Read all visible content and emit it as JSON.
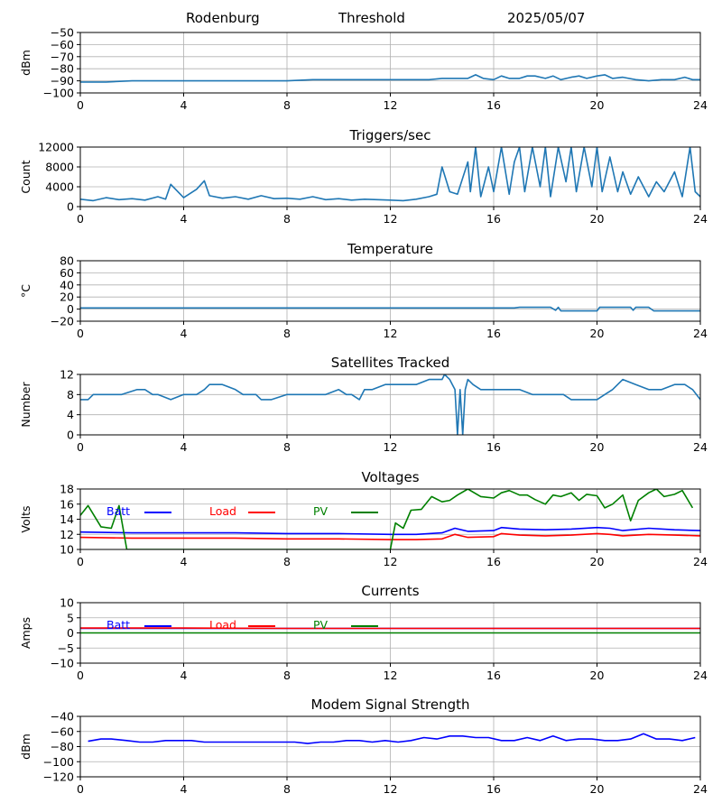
{
  "header": {
    "station": "Rodenburg",
    "mode": "Threshold",
    "date": "2025/05/07"
  },
  "chart_data": [
    {
      "type": "line",
      "title": "",
      "ylabel": "dBm",
      "xlim": [
        0,
        24
      ],
      "ylim": [
        -100,
        -50
      ],
      "xticks": [
        0,
        4,
        8,
        12,
        16,
        20,
        24
      ],
      "yticks": [
        -100,
        -90,
        -80,
        -70,
        -60,
        -50
      ],
      "grid": true,
      "series": [
        {
          "color": "#1f77b4",
          "x": [
            0,
            1,
            2,
            3,
            4,
            5,
            6,
            7,
            8,
            9,
            10,
            11,
            12,
            13,
            13.5,
            14,
            14.5,
            15,
            15.3,
            15.6,
            16,
            16.3,
            16.6,
            17,
            17.3,
            17.6,
            18,
            18.3,
            18.6,
            19,
            19.3,
            19.6,
            20,
            20.3,
            20.6,
            21,
            21.5,
            22,
            22.5,
            23,
            23.4,
            23.7,
            24
          ],
          "values": [
            -91,
            -91,
            -90,
            -90,
            -90,
            -90,
            -90,
            -90,
            -90,
            -89,
            -89,
            -89,
            -89,
            -89,
            -89,
            -88,
            -88,
            -88,
            -85,
            -88,
            -89,
            -86,
            -88,
            -88,
            -86,
            -86,
            -88,
            -86,
            -89,
            -87,
            -86,
            -88,
            -86,
            -85,
            -88,
            -87,
            -89,
            -90,
            -89,
            -89,
            -87,
            -89,
            -89
          ]
        }
      ]
    },
    {
      "type": "line",
      "title": "Triggers/sec",
      "ylabel": "Count",
      "xlim": [
        0,
        24
      ],
      "ylim": [
        0,
        12000
      ],
      "xticks": [
        0,
        4,
        8,
        12,
        16,
        20,
        24
      ],
      "yticks": [
        0,
        4000,
        8000,
        12000
      ],
      "grid": true,
      "series": [
        {
          "color": "#1f77b4",
          "x": [
            0,
            0.5,
            1,
            1.5,
            2,
            2.5,
            3,
            3.3,
            3.5,
            4,
            4.5,
            4.8,
            5,
            5.5,
            6,
            6.5,
            7,
            7.5,
            8,
            8.5,
            9,
            9.5,
            10,
            10.5,
            11,
            11.5,
            12,
            12.5,
            13,
            13.5,
            13.8,
            14,
            14.3,
            14.6,
            15,
            15.1,
            15.3,
            15.5,
            15.8,
            16,
            16.3,
            16.6,
            16.8,
            17,
            17.2,
            17.5,
            17.8,
            18,
            18.2,
            18.5,
            18.8,
            19,
            19.2,
            19.5,
            19.8,
            20,
            20.2,
            20.5,
            20.8,
            21,
            21.3,
            21.6,
            22,
            22.3,
            22.6,
            23,
            23.3,
            23.6,
            23.8,
            24
          ],
          "values": [
            1500,
            1200,
            1800,
            1400,
            1600,
            1300,
            2000,
            1500,
            4500,
            1800,
            3500,
            5200,
            2200,
            1700,
            2000,
            1500,
            2200,
            1600,
            1700,
            1500,
            2000,
            1400,
            1600,
            1300,
            1500,
            1400,
            1300,
            1200,
            1500,
            2000,
            2500,
            8000,
            3000,
            2500,
            9000,
            3000,
            12000,
            2000,
            8000,
            3000,
            12000,
            2500,
            9000,
            12000,
            3000,
            12000,
            4000,
            12000,
            2000,
            12000,
            5000,
            12000,
            3000,
            12000,
            4000,
            12000,
            3000,
            10000,
            3000,
            7000,
            2500,
            6000,
            2000,
            5000,
            3000,
            7000,
            2000,
            12000,
            3000,
            2000
          ]
        }
      ]
    },
    {
      "type": "line",
      "title": "Temperature",
      "ylabel": "°C",
      "xlim": [
        0,
        24
      ],
      "ylim": [
        -20,
        80
      ],
      "xticks": [
        0,
        4,
        8,
        12,
        16,
        20,
        24
      ],
      "yticks": [
        -20,
        0,
        20,
        40,
        60,
        80
      ],
      "grid": true,
      "series": [
        {
          "color": "#1f77b4",
          "x": [
            0,
            4,
            8,
            12,
            16,
            16.8,
            17,
            18.2,
            18.4,
            18.5,
            18.6,
            18.8,
            19,
            19.3,
            19.6,
            20,
            20.1,
            20.5,
            21,
            21.3,
            21.4,
            21.5,
            22,
            22.2,
            22.5,
            22.8,
            23,
            23.3,
            23.6,
            24
          ],
          "values": [
            2,
            2,
            2,
            2,
            2,
            2,
            3,
            3,
            -2,
            3,
            -3,
            -3,
            -3,
            -3,
            -3,
            -3,
            3,
            3,
            3,
            3,
            -2,
            3,
            3,
            -3,
            -3,
            -3,
            -3,
            -3,
            -3,
            -3
          ]
        }
      ]
    },
    {
      "type": "line",
      "title": "Satellites Tracked",
      "ylabel": "Number",
      "xlim": [
        0,
        24
      ],
      "ylim": [
        0,
        12
      ],
      "xticks": [
        0,
        4,
        8,
        12,
        16,
        20,
        24
      ],
      "yticks": [
        0,
        4,
        8,
        12
      ],
      "grid": true,
      "series": [
        {
          "color": "#1f77b4",
          "x": [
            0,
            0.3,
            0.5,
            1,
            1.6,
            2.2,
            2.5,
            2.8,
            3,
            3.5,
            4,
            4.5,
            4.8,
            5,
            5.5,
            6,
            6.3,
            6.8,
            7,
            7.2,
            7.4,
            8,
            8.5,
            9,
            9.5,
            10,
            10.3,
            10.5,
            10.8,
            11,
            11.3,
            11.8,
            12,
            12.5,
            13,
            13.5,
            14,
            14.1,
            14.3,
            14.4,
            14.5,
            14.6,
            14.7,
            14.8,
            14.9,
            15,
            15.2,
            15.5,
            16,
            16.5,
            17,
            17.5,
            18,
            18.3,
            18.7,
            19,
            19.5,
            20,
            20.3,
            20.6,
            21,
            21.5,
            22,
            22.5,
            23,
            23.4,
            23.7,
            24
          ],
          "values": [
            7,
            7,
            8,
            8,
            8,
            9,
            9,
            8,
            8,
            7,
            8,
            8,
            9,
            10,
            10,
            9,
            8,
            8,
            7,
            7,
            7,
            8,
            8,
            8,
            8,
            9,
            8,
            8,
            7,
            9,
            9,
            10,
            10,
            10,
            10,
            11,
            11,
            12,
            11,
            10,
            9,
            0,
            9,
            0,
            9,
            11,
            10,
            9,
            9,
            9,
            9,
            8,
            8,
            8,
            8,
            7,
            7,
            7,
            8,
            9,
            11,
            10,
            9,
            9,
            10,
            10,
            9,
            7
          ]
        }
      ]
    },
    {
      "type": "line",
      "title": "Voltages",
      "ylabel": "Volts",
      "xlim": [
        0,
        24
      ],
      "ylim": [
        10,
        18
      ],
      "xticks": [
        0,
        4,
        8,
        12,
        16,
        20,
        24
      ],
      "yticks": [
        10,
        12,
        14,
        16,
        18
      ],
      "grid": true,
      "legend_position": "top",
      "series": [
        {
          "name": "Batt",
          "color": "#0000ff",
          "x": [
            0,
            2,
            4,
            6,
            8,
            10,
            12,
            13,
            14,
            14.5,
            15,
            16,
            16.3,
            17,
            18,
            19,
            20,
            20.5,
            21,
            22,
            23,
            24
          ],
          "values": [
            12.3,
            12.2,
            12.2,
            12.2,
            12.1,
            12.1,
            12.0,
            12.0,
            12.2,
            12.8,
            12.4,
            12.5,
            12.9,
            12.7,
            12.6,
            12.7,
            12.9,
            12.8,
            12.5,
            12.8,
            12.6,
            12.5
          ]
        },
        {
          "name": "Load",
          "color": "#ff0000",
          "x": [
            0,
            2,
            4,
            6,
            8,
            10,
            12,
            13,
            14,
            14.5,
            15,
            16,
            16.3,
            17,
            18,
            19,
            20,
            20.5,
            21,
            22,
            23,
            24
          ],
          "values": [
            11.6,
            11.5,
            11.5,
            11.5,
            11.4,
            11.4,
            11.3,
            11.3,
            11.4,
            12.0,
            11.6,
            11.7,
            12.1,
            11.9,
            11.8,
            11.9,
            12.1,
            12.0,
            11.8,
            12.0,
            11.9,
            11.8
          ]
        },
        {
          "name": "PV",
          "color": "#008000",
          "x": [
            0,
            0.3,
            0.8,
            1.2,
            1.5,
            1.8,
            12,
            12.2,
            12.5,
            12.8,
            13.2,
            13.6,
            14,
            14.3,
            14.6,
            15,
            15.5,
            16,
            16.3,
            16.6,
            17,
            17.3,
            17.6,
            18,
            18.3,
            18.6,
            19,
            19.3,
            19.6,
            20,
            20.3,
            20.6,
            21,
            21.3,
            21.6,
            22,
            22.3,
            22.6,
            23,
            23.3,
            23.7
          ],
          "values": [
            14.5,
            15.8,
            13.0,
            12.8,
            15.8,
            10.0,
            10.0,
            13.5,
            12.8,
            15.2,
            15.3,
            17.0,
            16.3,
            16.5,
            17.2,
            18.0,
            17.0,
            16.8,
            17.5,
            17.8,
            17.2,
            17.2,
            16.6,
            16.0,
            17.2,
            17.0,
            17.5,
            16.5,
            17.3,
            17.1,
            15.5,
            16.0,
            17.2,
            13.8,
            16.5,
            17.5,
            18.0,
            17.0,
            17.3,
            17.8,
            15.5
          ]
        }
      ]
    },
    {
      "type": "line",
      "title": "Currents",
      "ylabel": "Amps",
      "xlim": [
        0,
        24
      ],
      "ylim": [
        -10,
        10
      ],
      "xticks": [
        0,
        4,
        8,
        12,
        16,
        20,
        24
      ],
      "yticks": [
        -10,
        -5,
        0,
        5,
        10
      ],
      "grid": true,
      "legend_position": "top",
      "series": [
        {
          "name": "Batt",
          "color": "#0000ff",
          "x": [
            0,
            24
          ],
          "values": [
            1.5,
            1.5
          ]
        },
        {
          "name": "Load",
          "color": "#ff0000",
          "x": [
            0,
            4,
            8,
            12,
            16,
            20,
            24
          ],
          "values": [
            1.6,
            1.6,
            1.5,
            1.5,
            1.5,
            1.5,
            1.5
          ]
        },
        {
          "name": "PV",
          "color": "#008000",
          "x": [
            0,
            24
          ],
          "values": [
            0,
            0
          ]
        }
      ]
    },
    {
      "type": "line",
      "title": "Modem Signal Strength",
      "ylabel": "dBm",
      "xlim": [
        0,
        24
      ],
      "ylim": [
        -120,
        -40
      ],
      "xticks": [
        0,
        4,
        8,
        12,
        16,
        20,
        24
      ],
      "yticks": [
        -120,
        -100,
        -80,
        -60,
        -40
      ],
      "grid": true,
      "series": [
        {
          "color": "#0000ff",
          "x": [
            0.3,
            0.8,
            1.2,
            1.8,
            2.3,
            2.8,
            3.3,
            3.8,
            4.3,
            4.8,
            5.3,
            5.8,
            6.3,
            6.8,
            7.3,
            7.8,
            8.3,
            8.8,
            9.3,
            9.8,
            10.3,
            10.8,
            11.3,
            11.8,
            12.3,
            12.8,
            13.3,
            13.8,
            14.3,
            14.8,
            15.3,
            15.8,
            16.3,
            16.8,
            17.3,
            17.8,
            18.3,
            18.8,
            19.3,
            19.8,
            20.3,
            20.8,
            21.3,
            21.8,
            22.3,
            22.8,
            23.3,
            23.8
          ],
          "values": [
            -73,
            -70,
            -70,
            -72,
            -74,
            -74,
            -72,
            -72,
            -72,
            -74,
            -74,
            -74,
            -74,
            -74,
            -74,
            -74,
            -74,
            -76,
            -74,
            -74,
            -72,
            -72,
            -74,
            -72,
            -74,
            -72,
            -68,
            -70,
            -66,
            -66,
            -68,
            -68,
            -72,
            -72,
            -68,
            -72,
            -66,
            -72,
            -70,
            -70,
            -72,
            -72,
            -70,
            -63,
            -70,
            -70,
            -72,
            -68
          ]
        }
      ]
    }
  ]
}
